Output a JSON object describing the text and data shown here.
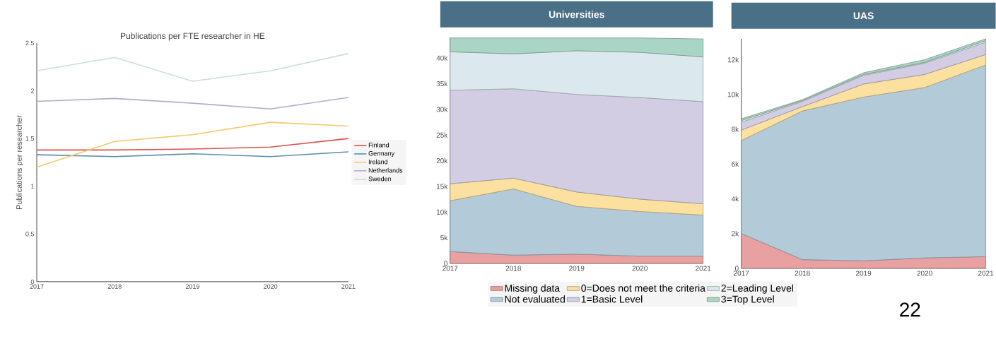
{
  "chart_data": [
    {
      "type": "line",
      "title": "Publications per FTE researcher in HE",
      "ylabel": "Publications per researcher",
      "x": [
        2017,
        2018,
        2019,
        2020,
        2021
      ],
      "xlim": [
        2017,
        2021
      ],
      "xticks": [
        2017,
        2018,
        2019,
        2020,
        2021
      ],
      "ylim": [
        0,
        2.5
      ],
      "yticks": [
        0,
        0.5,
        1,
        1.5,
        2,
        2.5
      ],
      "legend": "right",
      "series": [
        {
          "name": "Finland",
          "color": "#d9534f",
          "values": [
            1.38,
            1.38,
            1.39,
            1.41,
            1.5
          ]
        },
        {
          "name": "Germany",
          "color": "#5b8fa8",
          "values": [
            1.33,
            1.31,
            1.34,
            1.31,
            1.36
          ]
        },
        {
          "name": "Ireland",
          "color": "#f5c86a",
          "values": [
            1.2,
            1.47,
            1.54,
            1.67,
            1.63
          ]
        },
        {
          "name": "Netherlands",
          "color": "#b8a9cc",
          "values": [
            1.89,
            1.92,
            1.87,
            1.81,
            1.93
          ]
        },
        {
          "name": "Sweden",
          "color": "#c9dde3",
          "values": [
            2.21,
            2.35,
            2.1,
            2.21,
            2.39
          ]
        }
      ]
    },
    {
      "type": "area",
      "stacked": true,
      "title": "Universities",
      "x": [
        2017,
        2018,
        2019,
        2020,
        2021
      ],
      "xlim": [
        2017,
        2021
      ],
      "xticks": [
        2017,
        2018,
        2019,
        2020,
        2021
      ],
      "ylim": [
        0,
        44000
      ],
      "yticks": [
        0,
        {
          "value": 5000,
          "label": "5k"
        },
        {
          "value": 10000,
          "label": "10k"
        },
        {
          "value": 15000,
          "label": "15k"
        },
        {
          "value": 20000,
          "label": "20k"
        },
        {
          "value": 25000,
          "label": "25k"
        },
        {
          "value": 30000,
          "label": "30k"
        },
        {
          "value": 35000,
          "label": "35k"
        },
        {
          "value": 40000,
          "label": "40k"
        }
      ],
      "legend": "bottom",
      "series": [
        {
          "name": "Missing data",
          "color": "#e8a0a0",
          "values": [
            2300,
            1600,
            1800,
            1400,
            1400
          ]
        },
        {
          "name": "Not evaluated",
          "color": "#b3cbd9",
          "values": [
            9900,
            12900,
            9300,
            8700,
            8000
          ]
        },
        {
          "name": "0=Does not meet the criteria",
          "color": "#fbe0a0",
          "values": [
            3300,
            2100,
            2800,
            2400,
            2200
          ]
        },
        {
          "name": "1=Basic Level",
          "color": "#d3cde3",
          "values": [
            18200,
            17400,
            19000,
            19800,
            19900
          ]
        },
        {
          "name": "2=Leading Level",
          "color": "#dbe9ee",
          "values": [
            7500,
            6800,
            8500,
            8800,
            8700
          ]
        },
        {
          "name": "3=Top Level",
          "color": "#a8d5c4",
          "values": [
            2700,
            3100,
            2500,
            2800,
            3500
          ]
        }
      ]
    },
    {
      "type": "area",
      "stacked": true,
      "title": "UAS",
      "x": [
        2017,
        2018,
        2019,
        2020,
        2021
      ],
      "xlim": [
        2017,
        2021
      ],
      "xticks": [
        2017,
        2018,
        2019,
        2020,
        2021
      ],
      "ylim": [
        0,
        13200
      ],
      "yticks": [
        0,
        {
          "value": 2000,
          "label": "2k"
        },
        {
          "value": 4000,
          "label": "4k"
        },
        {
          "value": 6000,
          "label": "6k"
        },
        {
          "value": 8000,
          "label": "8k"
        },
        {
          "value": 10000,
          "label": "10k"
        },
        {
          "value": 12000,
          "label": "12k"
        }
      ],
      "annotations": [
        "22"
      ],
      "series": [
        {
          "color": "#e8a0a0",
          "values": [
            2000,
            500,
            430,
            600,
            670
          ]
        },
        {
          "color": "#b3cbd9",
          "values": [
            5350,
            8550,
            9420,
            9800,
            11030
          ]
        },
        {
          "color": "#fbe0a0",
          "values": [
            600,
            250,
            750,
            750,
            600
          ]
        },
        {
          "color": "#d3cde3",
          "values": [
            450,
            300,
            500,
            650,
            700
          ]
        },
        {
          "color": "#dbe9ee",
          "values": [
            100,
            50,
            50,
            50,
            100
          ]
        },
        {
          "color": "#a8d5c4",
          "values": [
            100,
            50,
            100,
            150,
            100
          ]
        }
      ]
    }
  ]
}
